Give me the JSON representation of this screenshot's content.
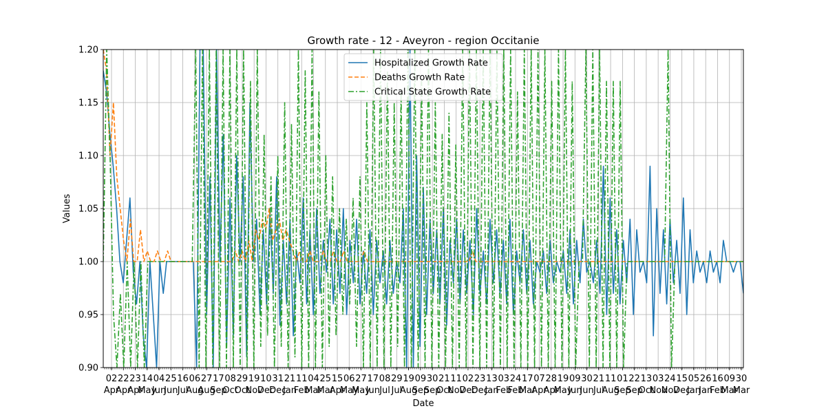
{
  "chart_data": {
    "type": "line",
    "title": "Growth rate - 12 - Aveyron - region Occitanie",
    "xlabel": "Date",
    "ylabel": "Values",
    "ylim": [
      0.9,
      1.2
    ],
    "yticks": [
      "0.90",
      "0.95",
      "1.00",
      "1.05",
      "1.10",
      "1.15",
      "1.20"
    ],
    "grid": true,
    "legend_position": "top-center",
    "x_tick_labels": [
      {
        "day": "02",
        "month": "Apr"
      },
      {
        "day": "22",
        "month": "Apr"
      },
      {
        "day": "23",
        "month": "Apr"
      },
      {
        "day": "14",
        "month": "May"
      },
      {
        "day": "04",
        "month": "Jun"
      },
      {
        "day": "25",
        "month": "Jun"
      },
      {
        "day": "16",
        "month": "Jul"
      },
      {
        "day": "06",
        "month": "Aug"
      },
      {
        "day": "27",
        "month": "Aug"
      },
      {
        "day": "17",
        "month": "Sep"
      },
      {
        "day": "08",
        "month": "Oct"
      },
      {
        "day": "29",
        "month": "Oct"
      },
      {
        "day": "19",
        "month": "Nov"
      },
      {
        "day": "10",
        "month": "Dec"
      },
      {
        "day": "31",
        "month": "Dec"
      },
      {
        "day": "21",
        "month": "Jan"
      },
      {
        "day": "11",
        "month": "Feb"
      },
      {
        "day": "04",
        "month": "Mar"
      },
      {
        "day": "25",
        "month": "Mar"
      },
      {
        "day": "15",
        "month": "Apr"
      },
      {
        "day": "06",
        "month": "May"
      },
      {
        "day": "27",
        "month": "May"
      },
      {
        "day": "17",
        "month": "Jun"
      },
      {
        "day": "08",
        "month": "Jul"
      },
      {
        "day": "29",
        "month": "Jul"
      },
      {
        "day": "19",
        "month": "Aug"
      },
      {
        "day": "09",
        "month": "Sep"
      },
      {
        "day": "30",
        "month": "Sep"
      },
      {
        "day": "21",
        "month": "Oct"
      },
      {
        "day": "11",
        "month": "Nov"
      },
      {
        "day": "02",
        "month": "Dec"
      },
      {
        "day": "23",
        "month": "Dec"
      },
      {
        "day": "13",
        "month": "Jan"
      },
      {
        "day": "03",
        "month": "Feb"
      },
      {
        "day": "24",
        "month": "Feb"
      },
      {
        "day": "17",
        "month": "Mar"
      },
      {
        "day": "07",
        "month": "Apr"
      },
      {
        "day": "28",
        "month": "Apr"
      },
      {
        "day": "19",
        "month": "May"
      },
      {
        "day": "09",
        "month": "Jun"
      },
      {
        "day": "30",
        "month": "Jun"
      },
      {
        "day": "21",
        "month": "Jul"
      },
      {
        "day": "11",
        "month": "Aug"
      },
      {
        "day": "01",
        "month": "Sep"
      },
      {
        "day": "22",
        "month": "Sep"
      },
      {
        "day": "13",
        "month": "Oct"
      },
      {
        "day": "03",
        "month": "Nov"
      },
      {
        "day": "24",
        "month": "Nov"
      },
      {
        "day": "15",
        "month": "Dec"
      },
      {
        "day": "05",
        "month": "Jan"
      },
      {
        "day": "26",
        "month": "Jan"
      },
      {
        "day": "16",
        "month": "Feb"
      },
      {
        "day": "09",
        "month": "Mar"
      },
      {
        "day": "30",
        "month": "Mar"
      }
    ],
    "series": [
      {
        "name": "Hospitalized Growth Rate",
        "color": "#1f77b4",
        "style": "solid",
        "values": [
          1.18,
          1.16,
          1.12,
          1.09,
          1.05,
          1.0,
          0.98,
          1.02,
          1.06,
          0.99,
          0.96,
          1.0,
          0.93,
          0.9,
          1.0,
          0.95,
          0.9,
          1.0,
          0.97,
          1.0,
          1.0,
          1.0,
          1.0,
          1.0,
          1.0,
          1.0,
          1.0,
          1.0,
          0.9,
          1.2,
          1.2,
          0.95,
          1.08,
          0.9,
          1.2,
          1.0,
          1.12,
          0.92,
          1.06,
          0.93,
          1.1,
          1.0,
          1.08,
          0.91,
          1.15,
          1.0,
          1.04,
          0.95,
          1.03,
          0.96,
          1.05,
          0.97,
          1.08,
          0.94,
          1.02,
          0.96,
          1.04,
          0.93,
          1.01,
          0.98,
          1.06,
          0.96,
          1.03,
          0.95,
          1.05,
          0.97,
          1.02,
          0.99,
          1.04,
          0.96,
          1.03,
          0.97,
          1.05,
          0.95,
          1.02,
          0.98,
          1.04,
          0.96,
          1.01,
          0.97,
          1.03,
          0.95,
          1.02,
          0.98,
          1.01,
          0.96,
          1.02,
          0.97,
          1.0,
          0.98,
          1.05,
          0.9,
          1.2,
          0.9,
          1.1,
          0.92,
          1.07,
          0.95,
          1.04,
          0.97,
          1.03,
          0.96,
          1.05,
          0.94,
          1.02,
          0.98,
          1.04,
          0.96,
          1.03,
          0.97,
          1.02,
          0.95,
          1.05,
          0.97,
          1.01,
          0.96,
          1.04,
          0.98,
          1.03,
          0.97,
          1.02,
          0.96,
          1.04,
          0.95,
          1.01,
          0.98,
          1.03,
          0.97,
          1.02,
          0.96,
          1.0,
          0.99,
          1.01,
          0.97,
          1.02,
          0.98,
          1.0,
          0.99,
          1.01,
          0.97,
          1.03,
          0.96,
          1.02,
          0.98,
          1.04,
          0.99,
          1.0,
          0.98,
          1.02,
          0.97,
          1.09,
          0.95,
          1.06,
          0.97,
          1.03,
          0.96,
          1.02,
          0.98,
          1.04,
          0.95,
          1.03,
          0.99,
          1.0,
          0.98,
          1.09,
          0.93,
          1.05,
          0.97,
          1.03,
          0.96,
          1.04,
          0.98,
          1.02,
          0.97,
          1.06,
          0.95,
          1.03,
          0.98,
          1.01,
          0.99,
          1.0,
          0.98,
          1.01,
          0.99,
          1.0,
          0.98,
          1.02,
          1.0,
          1.0,
          0.99,
          1.0,
          1.0,
          0.97
        ]
      },
      {
        "name": "Deaths Growth Rate",
        "color": "#ff7f0e",
        "style": "dashed",
        "values": [
          1.2,
          1.18,
          1.1,
          1.15,
          1.08,
          1.05,
          1.02,
          1.0,
          1.04,
          1.0,
          1.0,
          1.03,
          1.0,
          1.01,
          1.0,
          1.0,
          1.01,
          1.0,
          1.0,
          1.01,
          1.0,
          1.0,
          1.0,
          1.0,
          1.0,
          1.0,
          1.0,
          1.0,
          1.0,
          1.0,
          1.0,
          1.0,
          1.0,
          1.0,
          1.0,
          1.0,
          1.0,
          1.0,
          1.0,
          1.01,
          1.0,
          1.01,
          1.0,
          1.02,
          1.0,
          1.03,
          1.02,
          1.04,
          1.03,
          1.05,
          1.02,
          1.03,
          1.04,
          1.02,
          1.03,
          1.02,
          1.01,
          1.0,
          1.01,
          1.0,
          1.0,
          1.01,
          1.0,
          1.0,
          1.0,
          1.01,
          1.0,
          1.0,
          1.01,
          1.0,
          1.0,
          1.01,
          1.0,
          1.0,
          1.0,
          1.0,
          1.0,
          1.01,
          1.0,
          1.0,
          1.0,
          1.0,
          1.0,
          1.0,
          1.0,
          1.0,
          1.0,
          1.0,
          1.0,
          1.0,
          1.0,
          1.0,
          1.0,
          1.0,
          1.0,
          1.0,
          1.0,
          1.0,
          1.0,
          1.0,
          1.0,
          1.0,
          1.0,
          1.0,
          1.0,
          1.0,
          1.0,
          1.0,
          1.0,
          1.01,
          1.0,
          1.0,
          1.0,
          1.0,
          1.0,
          1.0,
          1.0,
          1.0,
          1.0,
          1.0,
          1.0,
          1.0,
          1.0,
          1.0,
          1.0,
          1.0,
          1.0,
          1.0,
          1.0,
          1.0,
          1.0,
          1.0,
          1.0,
          1.0,
          1.0,
          1.0,
          1.0,
          1.0,
          1.0,
          1.0,
          1.0,
          1.0,
          1.0,
          1.0,
          1.0,
          1.0,
          1.0,
          1.0,
          1.0,
          1.0,
          1.0,
          1.0,
          1.0,
          1.0,
          1.0,
          1.0,
          1.0,
          1.0,
          1.0,
          1.0,
          1.0,
          1.0,
          1.0,
          1.0,
          1.0,
          1.0,
          1.0,
          1.0,
          1.0,
          1.0,
          1.0,
          1.0,
          1.0,
          1.0,
          1.0,
          1.0,
          1.0,
          1.0,
          1.0,
          1.0,
          1.0,
          1.0,
          1.0,
          1.0,
          1.0,
          1.0,
          1.0,
          1.0,
          1.0,
          1.0
        ]
      },
      {
        "name": "Critical State Growth Rate",
        "color": "#2ca02c",
        "style": "dashdot",
        "values": [
          1.0,
          1.2,
          1.1,
          0.95,
          0.9,
          0.97,
          0.9,
          1.0,
          0.9,
          1.0,
          0.9,
          1.0,
          0.9,
          1.0,
          1.0,
          1.0,
          1.0,
          1.0,
          1.0,
          1.0,
          1.0,
          1.0,
          1.0,
          1.0,
          1.0,
          1.0,
          1.0,
          1.2,
          0.9,
          1.2,
          0.9,
          1.2,
          0.9,
          1.2,
          0.9,
          1.2,
          0.9,
          1.2,
          0.9,
          1.2,
          0.9,
          1.2,
          0.9,
          1.17,
          0.9,
          1.2,
          0.92,
          1.12,
          0.93,
          1.08,
          0.9,
          1.1,
          0.92,
          1.15,
          0.9,
          1.13,
          0.91,
          1.2,
          0.9,
          1.18,
          0.9,
          1.2,
          0.9,
          1.16,
          0.9,
          1.1,
          0.92,
          1.08,
          0.93,
          1.05,
          0.95,
          1.04,
          0.96,
          1.06,
          0.92,
          1.08,
          0.9,
          1.15,
          0.9,
          1.2,
          0.9,
          1.2,
          0.9,
          1.18,
          0.9,
          1.15,
          0.92,
          1.16,
          0.9,
          1.2,
          0.9,
          1.2,
          0.9,
          1.17,
          0.9,
          1.2,
          0.9,
          1.15,
          0.9,
          1.12,
          0.9,
          1.14,
          0.9,
          1.11,
          0.9,
          1.2,
          0.9,
          1.2,
          0.9,
          1.2,
          0.9,
          1.2,
          0.9,
          1.2,
          0.9,
          1.2,
          0.9,
          1.2,
          0.9,
          1.2,
          0.9,
          1.16,
          0.9,
          1.2,
          0.9,
          1.2,
          0.9,
          1.2,
          0.9,
          1.2,
          0.9,
          1.17,
          0.9,
          1.2,
          0.9,
          1.2,
          0.9,
          1.17,
          0.9,
          1.0,
          1.0,
          1.2,
          0.9,
          1.2,
          0.9,
          1.2,
          0.9,
          1.17,
          0.9,
          1.17,
          0.9,
          1.17,
          0.9,
          1.0,
          1.0,
          1.0,
          1.0,
          1.0,
          1.0,
          1.0,
          1.0,
          1.0,
          1.0,
          1.0,
          1.0,
          1.2,
          0.9,
          1.0,
          1.0,
          1.0,
          1.0,
          1.0,
          1.0,
          1.0,
          1.0,
          1.0,
          1.0,
          1.0,
          1.0,
          1.0,
          1.0,
          1.0,
          1.0,
          1.0,
          1.0,
          1.0,
          1.0,
          1.0
        ]
      }
    ]
  }
}
